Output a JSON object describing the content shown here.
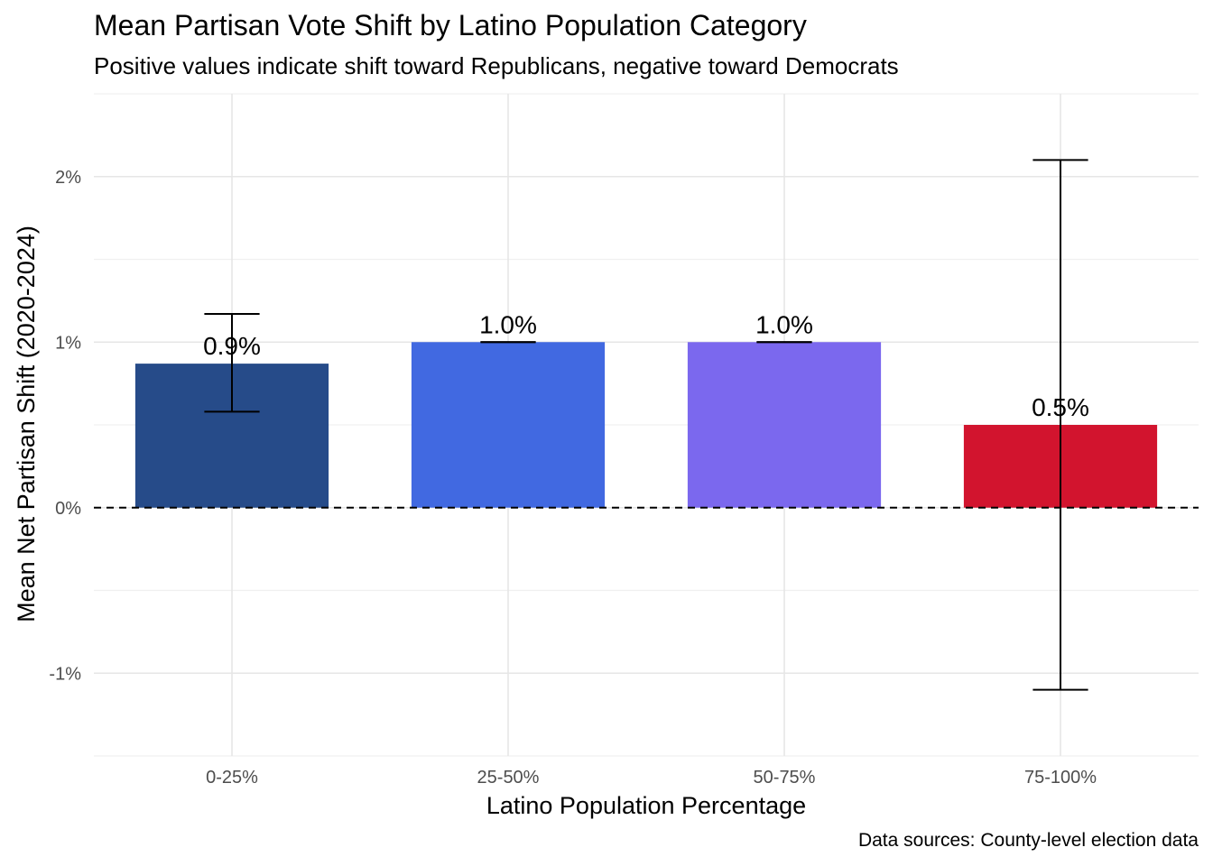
{
  "chart_data": {
    "type": "bar",
    "title": "Mean Partisan Vote Shift by Latino Population Category",
    "subtitle": "Positive values indicate shift toward Republicans, negative toward Democrats",
    "caption": "Data sources: County-level election data",
    "xlabel": "Latino Population Percentage",
    "ylabel": "Mean Net Partisan Shift (2020-2024)",
    "categories": [
      "0-25%",
      "25-50%",
      "50-75%",
      "75-100%"
    ],
    "values": [
      0.87,
      1.0,
      1.0,
      0.5
    ],
    "labels": [
      "0.9%",
      "1.0%",
      "1.0%",
      "0.5%"
    ],
    "error_low": [
      0.58,
      1.0,
      1.0,
      -1.1
    ],
    "error_high": [
      1.17,
      1.0,
      1.0,
      2.1
    ],
    "colors": [
      "#264B89",
      "#4169E1",
      "#7B68EE",
      "#D2142E"
    ],
    "ylim": [
      -1.5,
      2.5
    ],
    "yticks": [
      -1,
      0,
      1,
      2
    ],
    "ytick_labels": [
      "-1%",
      "0%",
      "1%",
      "2%"
    ],
    "reference_line": 0,
    "grid": true,
    "legend": "none"
  }
}
